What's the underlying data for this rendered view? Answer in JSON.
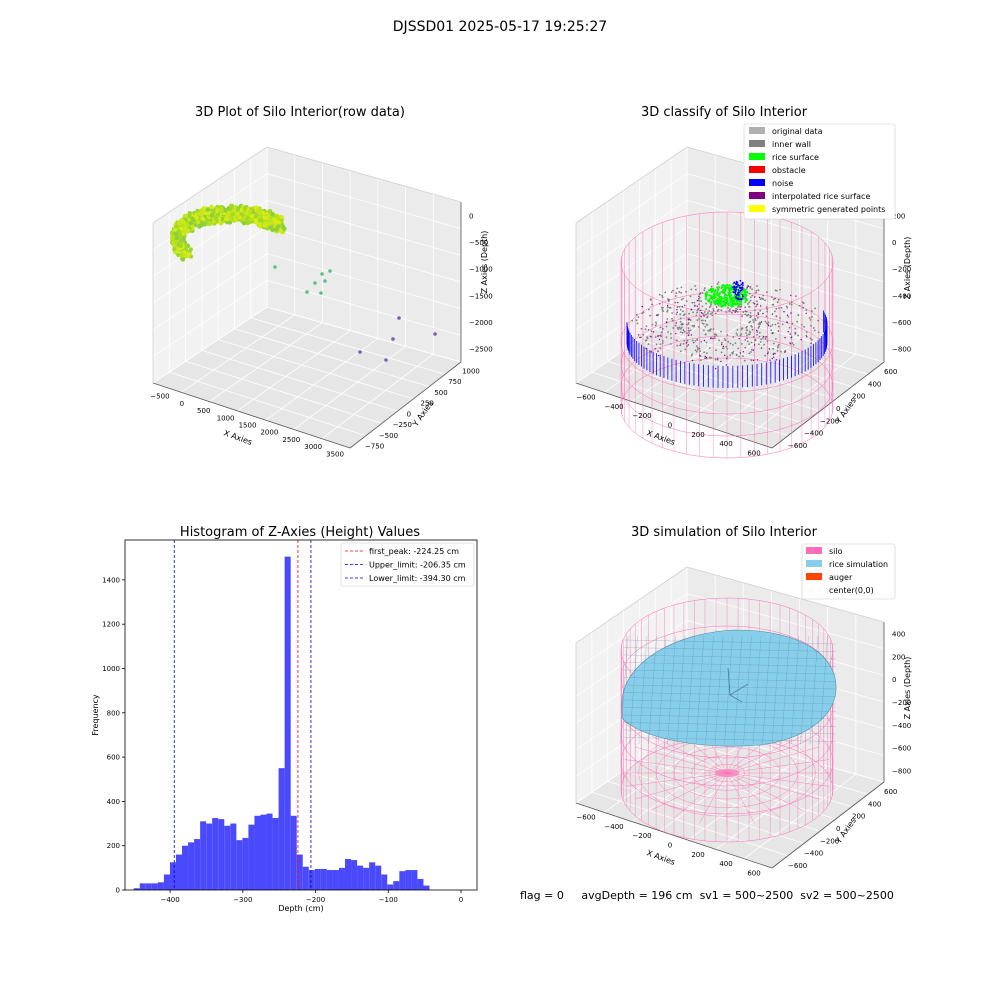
{
  "suptitle": "DJSSD01 2025-05-17 19:25:27",
  "footer": {
    "flag": "flag = 0",
    "avg": "avgDepth = 196 cm",
    "sv1": "sv1 = 500~2500",
    "sv2": "sv2 = 500~2500"
  },
  "colors": {
    "histogram_bar": "#4a4afc",
    "peak_line": "#ff0000",
    "limit_line": "#0000cc",
    "silo_wire": "#ff6eb4",
    "rice_simulation": "#87ceeb",
    "rice_surface": "#00ff00",
    "noise": "#0000ff",
    "original_data": "#b0b0b0",
    "inner_wall": "#808080",
    "obstacle": "#ff0000",
    "interpolated_rice_surface": "#800080",
    "symmetric_generated_points": "#ffff00",
    "auger": "#ff4500"
  },
  "chart_data": [
    {
      "type": "scatter",
      "title": "3D Plot of Silo Interior(row data)",
      "xlabel": "X Axies",
      "ylabel": "Y Axies",
      "zlabel": "Z Axies (Depth)",
      "xticks": [
        "−500",
        "0",
        "500",
        "1000",
        "1500",
        "2000",
        "2500",
        "3000",
        "3500"
      ],
      "yticks": [
        "−750",
        "−500",
        "−250",
        "0",
        "250",
        "500",
        "750",
        "1000"
      ],
      "zticks": [
        "0",
        "−500",
        "−1000",
        "−1500",
        "−2000",
        "−2500"
      ],
      "xlim": [
        -600,
        3600
      ],
      "ylim": [
        -750,
        1100
      ],
      "zlim": [
        -2800,
        200
      ],
      "grid": true
    },
    {
      "type": "scatter",
      "title": "3D classify of Silo Interior",
      "xlabel": "X Axies",
      "ylabel": "Y Axies",
      "zlabel": "Z Axies (Depth)",
      "xticks": [
        "−600",
        "−400",
        "−200",
        "0",
        "200",
        "400",
        "600"
      ],
      "yticks": [
        "−600",
        "−400",
        "−200",
        "0",
        "200",
        "400",
        "600"
      ],
      "zticks": [
        "200",
        "0",
        "−200",
        "−400",
        "−600",
        "−800"
      ],
      "xlim": [
        -700,
        700
      ],
      "ylim": [
        -700,
        700
      ],
      "zlim": [
        -900,
        300
      ],
      "grid": true,
      "legend_position": "top-right",
      "legend": [
        {
          "label": "original data",
          "color": "#b0b0b0"
        },
        {
          "label": "inner wall",
          "color": "#808080"
        },
        {
          "label": "rice surface",
          "color": "#00ff00"
        },
        {
          "label": "obstacle",
          "color": "#ff0000"
        },
        {
          "label": "noise",
          "color": "#0000ff"
        },
        {
          "label": "interpolated rice surface",
          "color": "#800080"
        },
        {
          "label": "symmetric generated points",
          "color": "#ffff00"
        }
      ]
    },
    {
      "type": "bar",
      "title": "Histogram of Z-Axies (Height) Values",
      "xlabel": "Depth (cm)",
      "ylabel": "Frequency",
      "xlim": [
        -462,
        22
      ],
      "ylim": [
        0,
        1580
      ],
      "xticks": [
        -400,
        -300,
        -200,
        -100,
        0
      ],
      "xtick_labels": [
        "−400",
        "−300",
        "−200",
        "−100",
        "0"
      ],
      "yticks": [
        0,
        200,
        400,
        600,
        800,
        1000,
        1200,
        1400
      ],
      "bin_start": -450,
      "bin_width": 8.3,
      "values": [
        8,
        30,
        30,
        30,
        35,
        70,
        125,
        160,
        200,
        215,
        230,
        310,
        300,
        325,
        320,
        290,
        300,
        225,
        235,
        295,
        335,
        340,
        345,
        325,
        550,
        1505,
        335,
        160,
        105,
        90,
        95,
        95,
        90,
        90,
        100,
        140,
        135,
        110,
        100,
        125,
        110,
        70,
        25,
        40,
        85,
        90,
        90,
        50,
        20
      ],
      "vlines": [
        {
          "x": -224.25,
          "label": "first_peak: -224.25 cm",
          "color": "#ff0000"
        },
        {
          "x": -206.35,
          "label": "Upper_limit: -206.35 cm",
          "color": "#0000cc"
        },
        {
          "x": -394.3,
          "label": "Lower_limit: -394.30 cm",
          "color": "#0000cc"
        }
      ],
      "legend_position": "top-right"
    },
    {
      "type": "area",
      "title": "3D simulation of Silo Interior",
      "xlabel": "X Axies",
      "ylabel": "Y Axies",
      "zlabel": "Z Axies (Depth)",
      "xticks": [
        "−600",
        "−400",
        "−200",
        "0",
        "200",
        "400",
        "600"
      ],
      "yticks": [
        "−600",
        "−400",
        "−200",
        "0",
        "200",
        "400",
        "600"
      ],
      "zticks": [
        "400",
        "200",
        "0",
        "−200",
        "−400",
        "−600",
        "−800"
      ],
      "xlim": [
        -700,
        700
      ],
      "ylim": [
        -700,
        700
      ],
      "zlim": [
        -900,
        500
      ],
      "grid": true,
      "legend_position": "top-right",
      "legend": [
        {
          "label": "silo",
          "color": "#ff6eb4"
        },
        {
          "label": "rice simulation",
          "color": "#87ceeb"
        },
        {
          "label": "auger",
          "color": "#ff4500"
        },
        {
          "label": "center(0,0)",
          "color": "#ffffff"
        }
      ]
    }
  ]
}
